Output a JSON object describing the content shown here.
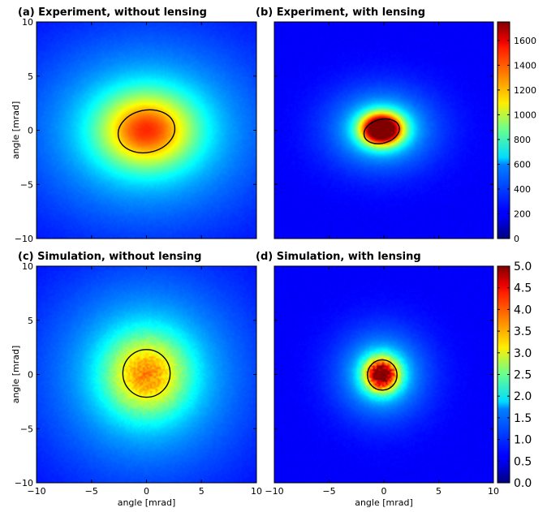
{
  "chart_data": [
    {
      "type": "heatmap",
      "title": "(a) Experiment, without lensing",
      "xlabel": "",
      "ylabel": "angle [mrad]",
      "xlim": [
        -10,
        10
      ],
      "ylim": [
        -10,
        10
      ],
      "x_ticks": [
        "",
        "",
        "",
        "",
        ""
      ],
      "y_ticks": [
        "10",
        "5",
        "0",
        "−5",
        "−10"
      ],
      "beam": {
        "center": [
          0.0,
          0.0
        ],
        "sigma_x": 3.0,
        "sigma_y": 2.4,
        "peak": 850,
        "noise": 0.0
      },
      "ellipse": {
        "center": [
          0.0,
          -0.1
        ],
        "rx": 2.6,
        "ry": 1.95,
        "rotation_deg": -12
      },
      "vmax": 1750
    },
    {
      "type": "heatmap",
      "title": "(b) Experiment, with lensing",
      "xlabel": "",
      "ylabel": "",
      "xlim": [
        -10,
        10
      ],
      "ylim": [
        -10,
        10
      ],
      "x_ticks": [
        "",
        "",
        "",
        "",
        ""
      ],
      "y_ticks": [
        "",
        "",
        "",
        "",
        ""
      ],
      "beam": {
        "center": [
          -0.2,
          0.1
        ],
        "sigma_x": 1.3,
        "sigma_y": 1.0,
        "peak": 1750,
        "noise": 0.0
      },
      "ellipse": {
        "center": [
          -0.2,
          -0.1
        ],
        "rx": 1.65,
        "ry": 1.1,
        "rotation_deg": -15
      },
      "vmax": 1750,
      "colorbar": {
        "ticks": [
          "0",
          "200",
          "400",
          "600",
          "800",
          "1000",
          "1200",
          "1400",
          "1600"
        ],
        "values": [
          0,
          200,
          400,
          600,
          800,
          1000,
          1200,
          1400,
          1600
        ],
        "vmin": 0,
        "vmax": 1750
      }
    },
    {
      "type": "heatmap",
      "title": "(c) Simulation, without lensing",
      "xlabel": "angle [mrad]",
      "ylabel": "angle [mrad]",
      "xlim": [
        -10,
        10
      ],
      "ylim": [
        -10,
        10
      ],
      "x_ticks": [
        "−10",
        "−5",
        "0",
        "5",
        "10"
      ],
      "y_ticks": [
        "10",
        "5",
        "0",
        "−5",
        "−10"
      ],
      "beam": {
        "center": [
          0.0,
          0.0
        ],
        "sigma_x": 2.6,
        "sigma_y": 2.6,
        "peak": 2.0,
        "noise": 0.25
      },
      "ellipse": {
        "center": [
          0.0,
          0.1
        ],
        "rx": 2.15,
        "ry": 2.2,
        "rotation_deg": 0
      },
      "vmax": 5.0
    },
    {
      "type": "heatmap",
      "title": "(d) Simulation, with lensing",
      "xlabel": "angle [mrad]",
      "ylabel": "",
      "xlim": [
        -10,
        10
      ],
      "ylim": [
        -10,
        10
      ],
      "x_ticks": [
        "−10",
        "−5",
        "0",
        "5",
        "10"
      ],
      "y_ticks": [
        "",
        "",
        "",
        "",
        ""
      ],
      "beam": {
        "center": [
          -0.2,
          0.0
        ],
        "sigma_x": 1.1,
        "sigma_y": 1.1,
        "peak": 3.8,
        "noise": 0.35
      },
      "ellipse": {
        "center": [
          -0.15,
          -0.05
        ],
        "rx": 1.35,
        "ry": 1.4,
        "rotation_deg": 0
      },
      "vmax": 5.0,
      "colorbar": {
        "ticks": [
          "0.0",
          "0.5",
          "1.0",
          "1.5",
          "2.0",
          "2.5",
          "3.0",
          "3.5",
          "4.0",
          "4.5",
          "5.0"
        ],
        "values": [
          0,
          0.5,
          1.0,
          1.5,
          2.0,
          2.5,
          3.0,
          3.5,
          4.0,
          4.5,
          5.0
        ],
        "vmin": 0,
        "vmax": 5.0
      }
    }
  ],
  "colormap": "jet",
  "colors": {
    "frame": "#000000",
    "ellipse": "#000000",
    "background": "#ffffff"
  }
}
